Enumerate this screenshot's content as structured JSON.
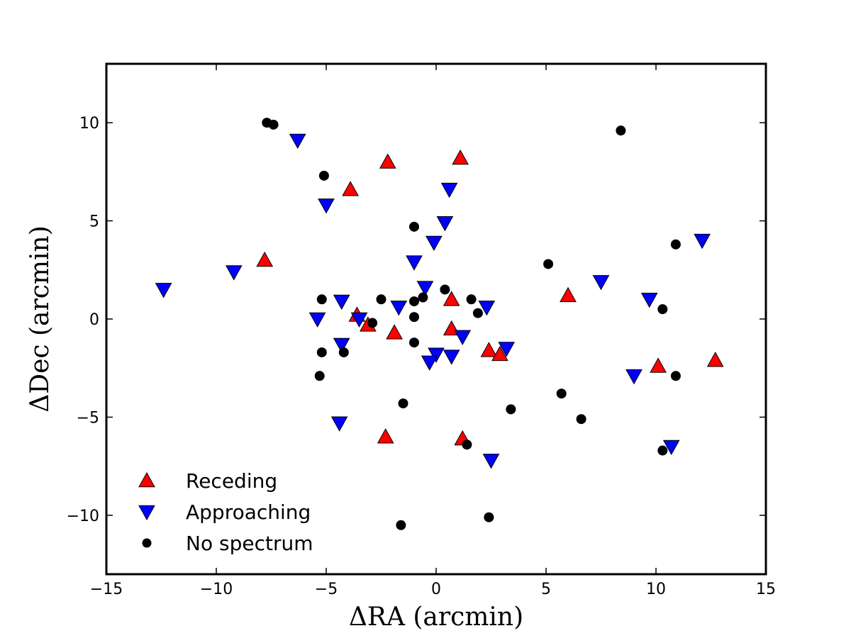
{
  "chart_data": {
    "type": "scatter",
    "title": "",
    "xlabel": "ΔRA (arcmin)",
    "ylabel": "ΔDec (arcmin)",
    "xlim": [
      -15,
      15
    ],
    "ylim": [
      -13,
      13
    ],
    "xticks": [
      -15,
      -10,
      -5,
      0,
      5,
      10,
      15
    ],
    "yticks": [
      -10,
      -5,
      0,
      5,
      10
    ],
    "xtick_labels": [
      "−15",
      "−10",
      "−5",
      "0",
      "5",
      "10",
      "15"
    ],
    "ytick_labels": [
      "−10",
      "−5",
      "0",
      "5",
      "10"
    ],
    "grid": false,
    "legend_position": "lower-left",
    "colors": {
      "receding": "#ff0000",
      "approaching": "#0000ff",
      "no_spectrum": "#000000"
    },
    "series": [
      {
        "name": "Receding",
        "marker": "triangle-up",
        "color": "#ff0000",
        "x": [
          -2.2,
          1.1,
          -3.9,
          -7.8,
          6.0,
          -3.6,
          -3.1,
          0.7,
          -1.9,
          0.7,
          2.4,
          2.9,
          10.1,
          12.7,
          -2.3,
          1.2
        ],
        "y": [
          8.0,
          8.2,
          6.6,
          3.0,
          1.2,
          0.2,
          -0.3,
          1.0,
          -0.7,
          -0.5,
          -1.6,
          -1.8,
          -2.4,
          -2.1,
          -6.0,
          -6.1
        ]
      },
      {
        "name": "Approaching",
        "marker": "triangle-down",
        "color": "#0000ff",
        "x": [
          -6.3,
          -5.0,
          0.6,
          0.4,
          -0.1,
          -1.0,
          -9.2,
          -12.4,
          -0.5,
          -4.3,
          -1.7,
          -5.4,
          -3.5,
          -4.3,
          2.3,
          1.2,
          3.2,
          0.0,
          -0.3,
          0.7,
          7.5,
          9.7,
          12.1,
          9.0,
          10.7,
          -4.4,
          2.5
        ],
        "y": [
          9.1,
          5.8,
          6.6,
          4.9,
          3.9,
          2.9,
          2.4,
          1.5,
          1.6,
          0.9,
          0.6,
          0.0,
          0.0,
          -1.3,
          0.6,
          -0.9,
          -1.5,
          -1.8,
          -2.2,
          -1.9,
          1.9,
          1.0,
          4.0,
          -2.9,
          -6.5,
          -5.3,
          -7.2
        ]
      },
      {
        "name": "No spectrum",
        "marker": "circle",
        "color": "#000000",
        "x": [
          -7.7,
          -7.4,
          8.4,
          -5.1,
          -1.0,
          10.9,
          5.1,
          10.3,
          -5.2,
          -2.5,
          -1.0,
          -0.6,
          0.4,
          1.6,
          1.9,
          -1.0,
          -2.9,
          -5.2,
          -4.2,
          -1.0,
          -5.3,
          -1.5,
          3.4,
          5.7,
          6.6,
          10.9,
          1.4,
          10.3,
          -1.6,
          2.4
        ],
        "y": [
          10.0,
          9.9,
          9.6,
          7.3,
          4.7,
          3.8,
          2.8,
          0.5,
          1.0,
          1.0,
          0.9,
          1.1,
          1.5,
          1.0,
          0.3,
          0.1,
          -0.2,
          -1.7,
          -1.7,
          -1.2,
          -2.9,
          -4.3,
          -4.6,
          -3.8,
          -5.1,
          -2.9,
          -6.4,
          -6.7,
          -10.5,
          -10.1
        ]
      }
    ]
  }
}
